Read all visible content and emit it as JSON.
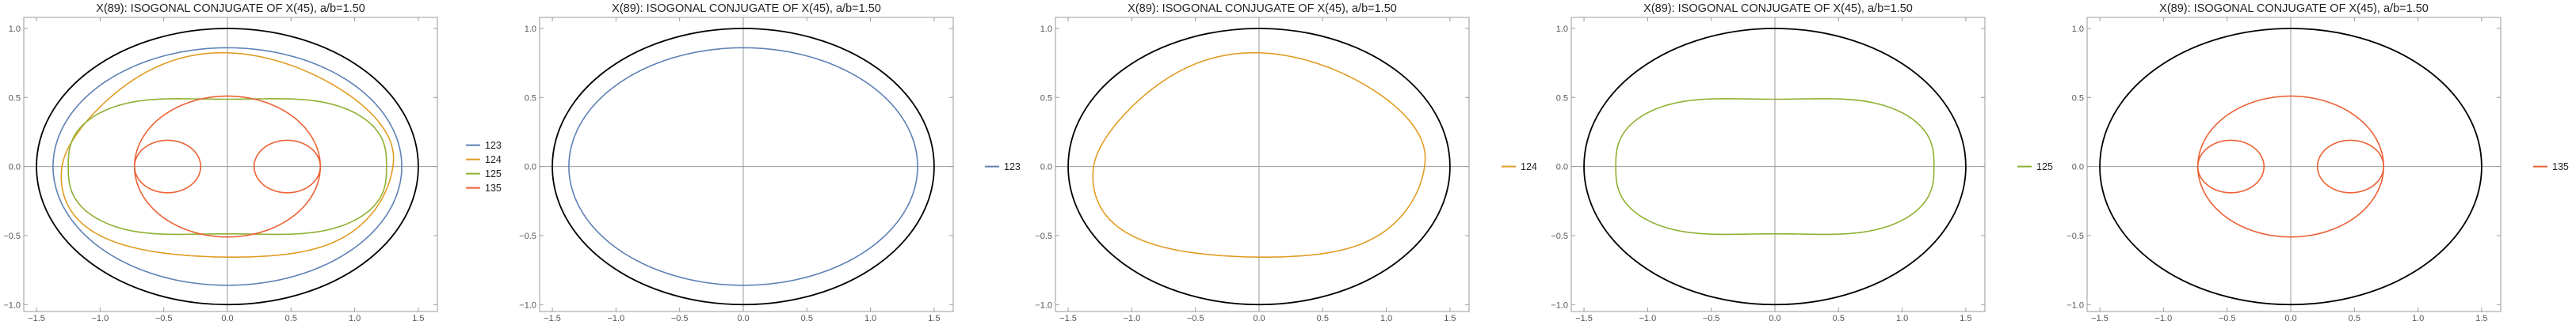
{
  "chart_data": [
    {
      "type": "line",
      "title": "X(89): ISOGONAL CONJUGATE OF X(45), a/b=1.50",
      "xlim": [
        -1.6,
        1.65
      ],
      "ylim": [
        -1.05,
        1.08
      ],
      "xticks": [
        -1.5,
        -1.0,
        -0.5,
        0.0,
        0.5,
        1.0,
        1.5
      ],
      "yticks": [
        -1.0,
        -0.5,
        0.0,
        0.5,
        1.0
      ],
      "grid": false,
      "axes_through_origin": true,
      "legend_position": "right",
      "reference_ellipse": {
        "a": 1.5,
        "b": 1.0,
        "color": "#000000"
      },
      "series": [
        {
          "name": "123",
          "color": "#5E81B5",
          "shape": "ellipse",
          "a": 1.37,
          "b": 0.86
        },
        {
          "name": "124",
          "color": "#E19C24",
          "shape": "limacon",
          "a": 1.3,
          "b": 0.74,
          "d": 0.14
        },
        {
          "name": "125",
          "color": "#8FB032",
          "shape": "peanut",
          "a": 1.25,
          "b": 0.57,
          "pinch": 0.42
        },
        {
          "name": "135",
          "color": "#EB6235",
          "shape": "bicircle",
          "big_a": 0.73,
          "big_b": 0.51,
          "small_rx": 0.26,
          "small_ry": 0.19,
          "small_cx": 0.47
        }
      ]
    },
    {
      "type": "line",
      "title": "X(89): ISOGONAL CONJUGATE OF X(45), a/b=1.50",
      "xlim": [
        -1.6,
        1.65
      ],
      "ylim": [
        -1.05,
        1.08
      ],
      "xticks": [
        -1.5,
        -1.0,
        -0.5,
        0.0,
        0.5,
        1.0,
        1.5
      ],
      "yticks": [
        -1.0,
        -0.5,
        0.0,
        0.5,
        1.0
      ],
      "grid": false,
      "axes_through_origin": true,
      "legend_position": "right",
      "reference_ellipse": {
        "a": 1.5,
        "b": 1.0,
        "color": "#000000"
      },
      "series": [
        {
          "name": "123",
          "color": "#5E81B5",
          "shape": "ellipse",
          "a": 1.37,
          "b": 0.86
        }
      ]
    },
    {
      "type": "line",
      "title": "X(89): ISOGONAL CONJUGATE OF X(45), a/b=1.50",
      "xlim": [
        -1.6,
        1.65
      ],
      "ylim": [
        -1.05,
        1.08
      ],
      "xticks": [
        -1.5,
        -1.0,
        -0.5,
        0.0,
        0.5,
        1.0,
        1.5
      ],
      "yticks": [
        -1.0,
        -0.5,
        0.0,
        0.5,
        1.0
      ],
      "grid": false,
      "axes_through_origin": true,
      "legend_position": "right",
      "reference_ellipse": {
        "a": 1.5,
        "b": 1.0,
        "color": "#000000"
      },
      "series": [
        {
          "name": "124",
          "color": "#E19C24",
          "shape": "limacon",
          "a": 1.3,
          "b": 0.74,
          "d": 0.14
        }
      ]
    },
    {
      "type": "line",
      "title": "X(89): ISOGONAL CONJUGATE OF X(45), a/b=1.50",
      "xlim": [
        -1.6,
        1.65
      ],
      "ylim": [
        -1.05,
        1.08
      ],
      "xticks": [
        -1.5,
        -1.0,
        -0.5,
        0.0,
        0.5,
        1.0,
        1.5
      ],
      "yticks": [
        -1.0,
        -0.5,
        0.0,
        0.5,
        1.0
      ],
      "grid": false,
      "axes_through_origin": true,
      "legend_position": "right",
      "reference_ellipse": {
        "a": 1.5,
        "b": 1.0,
        "color": "#000000"
      },
      "series": [
        {
          "name": "125",
          "color": "#8FB032",
          "shape": "peanut",
          "a": 1.25,
          "b": 0.57,
          "pinch": 0.42
        }
      ]
    },
    {
      "type": "line",
      "title": "X(89): ISOGONAL CONJUGATE OF X(45), a/b=1.50",
      "xlim": [
        -1.6,
        1.65
      ],
      "ylim": [
        -1.05,
        1.08
      ],
      "xticks": [
        -1.5,
        -1.0,
        -0.5,
        0.0,
        0.5,
        1.0,
        1.5
      ],
      "yticks": [
        -1.0,
        -0.5,
        0.0,
        0.5,
        1.0
      ],
      "grid": false,
      "axes_through_origin": true,
      "legend_position": "right",
      "reference_ellipse": {
        "a": 1.5,
        "b": 1.0,
        "color": "#000000"
      },
      "series": [
        {
          "name": "135",
          "color": "#EB6235",
          "shape": "bicircle",
          "big_a": 0.73,
          "big_b": 0.51,
          "small_rx": 0.26,
          "small_ry": 0.19,
          "small_cx": 0.47
        }
      ]
    }
  ]
}
